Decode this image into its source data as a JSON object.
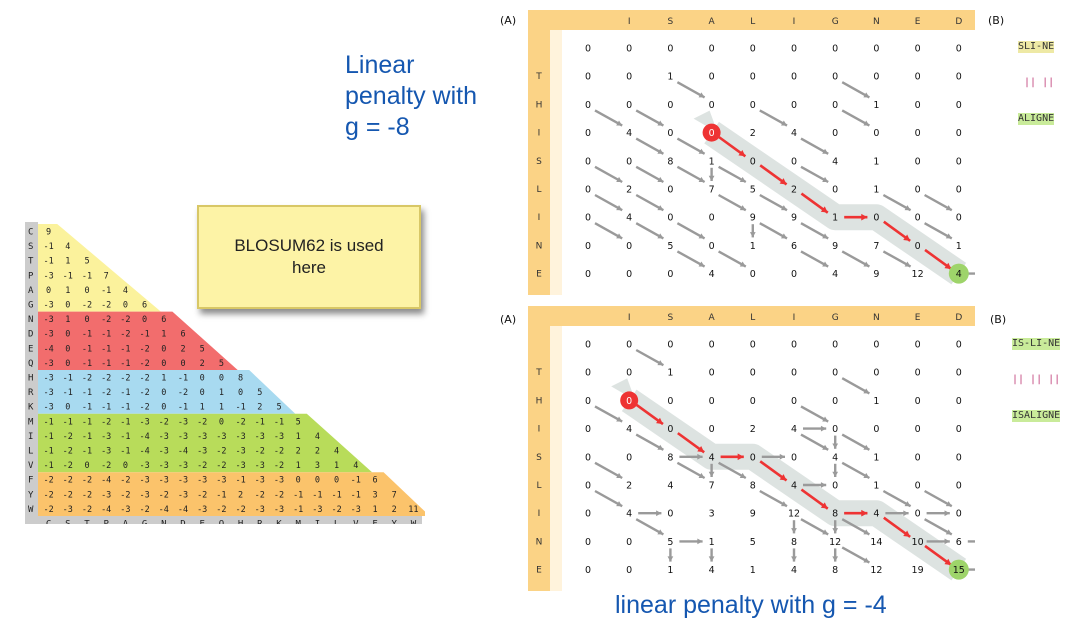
{
  "blosum": {
    "letters": [
      "C",
      "S",
      "T",
      "P",
      "A",
      "G",
      "N",
      "D",
      "E",
      "Q",
      "H",
      "R",
      "K",
      "M",
      "I",
      "L",
      "V",
      "F",
      "Y",
      "W"
    ],
    "rows": [
      "9",
      "-1 4",
      "-1 1 5",
      "-3 -1 -1 7",
      "0 1 0 -1 4",
      "-3 0 -2 -2 0 6",
      "-3 1 0 -2 -2 0 6",
      "-3 0 -1 -1 -2 -1 1 6",
      "-4 0 -1 -1 -1 -2 0 2 5",
      "-3 0 -1 -1 -1 -2 0 0 2 5",
      "-3 -1 -2 -2 -2 -2 1 -1 0 0 8",
      "-3 -1 -1 -2 -1 -2 0 -2 0 1 0 5",
      "-3 0 -1 -1 -1 -2 0 -1 1 1 -1 2 5",
      "-1 -1 -1 -2 -1 -3 -2 -3 -2 0 -2 -1 -1 5",
      "-1 -2 -1 -3 -1 -4 -3 -3 -3 -3 -3 -3 -3 1 4",
      "-1 -2 -1 -3 -1 -4 -3 -4 -3 -2 -3 -2 -2 2 2 4",
      "-1 -2 0 -2 0 -3 -3 -3 -2 -2 -3 -3 -2 1 3 1 4",
      "-2 -2 -2 -4 -2 -3 -3 -3 -3 -3 -1 -3 -3 0 0 0 -1 6",
      "-2 -2 -2 -3 -2 -3 -2 -3 -2 -1 2 -2 -2 -1 -1 -1 -1 3 7",
      "-2 -3 -2 -4 -3 -2 -4 -4 -3 -2 -2 -3 -3 -1 -3 -2 -3 1 2 11"
    ]
  },
  "note": {
    "text": "BLOSUM62 is used here"
  },
  "panel_top": {
    "caption": "Linear\npenalty with\ng = -8",
    "label_a": "(A)",
    "label_b": "(B)",
    "cols": [
      "I",
      "S",
      "A",
      "L",
      "I",
      "G",
      "N",
      "E",
      "D"
    ],
    "rows": [
      "T",
      "H",
      "I",
      "S",
      "L",
      "I",
      "N",
      "E"
    ],
    "matrix": [
      [
        0,
        0,
        0,
        0,
        0,
        0,
        0,
        0,
        0,
        0
      ],
      [
        0,
        0,
        1,
        0,
        0,
        0,
        0,
        0,
        0,
        0
      ],
      [
        0,
        0,
        0,
        0,
        0,
        0,
        0,
        1,
        0,
        0
      ],
      [
        0,
        4,
        0,
        0,
        2,
        4,
        0,
        0,
        0,
        0
      ],
      [
        0,
        0,
        8,
        1,
        0,
        0,
        4,
        1,
        0,
        0
      ],
      [
        0,
        2,
        0,
        7,
        5,
        2,
        0,
        1,
        0,
        0
      ],
      [
        0,
        4,
        0,
        0,
        9,
        9,
        1,
        0,
        0,
        0
      ],
      [
        0,
        0,
        5,
        0,
        1,
        6,
        9,
        7,
        0,
        1
      ],
      [
        0,
        0,
        0,
        4,
        0,
        0,
        4,
        9,
        12,
        4
      ]
    ],
    "path": [
      "0",
      "1",
      "5",
      "9",
      "1",
      "7",
      "12"
    ],
    "align_top": "SLI-NE",
    "align_mid": " || ||",
    "align_bot": "ALIGNE"
  },
  "panel_bottom": {
    "caption": "linear penalty with g = -4",
    "label_a": "(A)",
    "label_b": "(B)",
    "cols": [
      "I",
      "S",
      "A",
      "L",
      "I",
      "G",
      "N",
      "E",
      "D"
    ],
    "rows": [
      "T",
      "H",
      "I",
      "S",
      "L",
      "I",
      "N",
      "E"
    ],
    "matrix": [
      [
        0,
        0,
        0,
        0,
        0,
        0,
        0,
        0,
        0,
        0
      ],
      [
        0,
        0,
        1,
        0,
        0,
        0,
        0,
        0,
        0,
        0
      ],
      [
        0,
        0,
        0,
        0,
        0,
        0,
        0,
        1,
        0,
        0
      ],
      [
        0,
        4,
        0,
        0,
        2,
        4,
        0,
        0,
        0,
        0
      ],
      [
        0,
        0,
        8,
        4,
        0,
        0,
        4,
        1,
        0,
        0
      ],
      [
        0,
        2,
        4,
        7,
        8,
        4,
        0,
        1,
        0,
        0
      ],
      [
        0,
        4,
        0,
        3,
        9,
        12,
        8,
        4,
        0,
        0
      ],
      [
        0,
        0,
        5,
        1,
        5,
        8,
        12,
        14,
        10,
        6
      ],
      [
        0,
        0,
        1,
        4,
        1,
        4,
        8,
        12,
        19,
        15
      ]
    ],
    "path": [
      "0",
      "4",
      "8",
      "4",
      "8",
      "12",
      "8",
      "19"
    ],
    "align_top": "IS-LI-NE",
    "align_mid": "|| || ||",
    "align_bot": "ISALIGNE"
  },
  "colors": {
    "header": "#fbd386",
    "yellow": "#fbf29c",
    "red": "#f26d6d",
    "blue": "#a8daf0",
    "green": "#b8dc5a",
    "orange": "#fbc36b",
    "gray": "#cccccc",
    "path_red": "#ee3333",
    "path_green": "#9ed46a",
    "arrow_gray": "#9a9a9a",
    "band": "#dde3e1",
    "caption_blue": "#1557b0"
  }
}
